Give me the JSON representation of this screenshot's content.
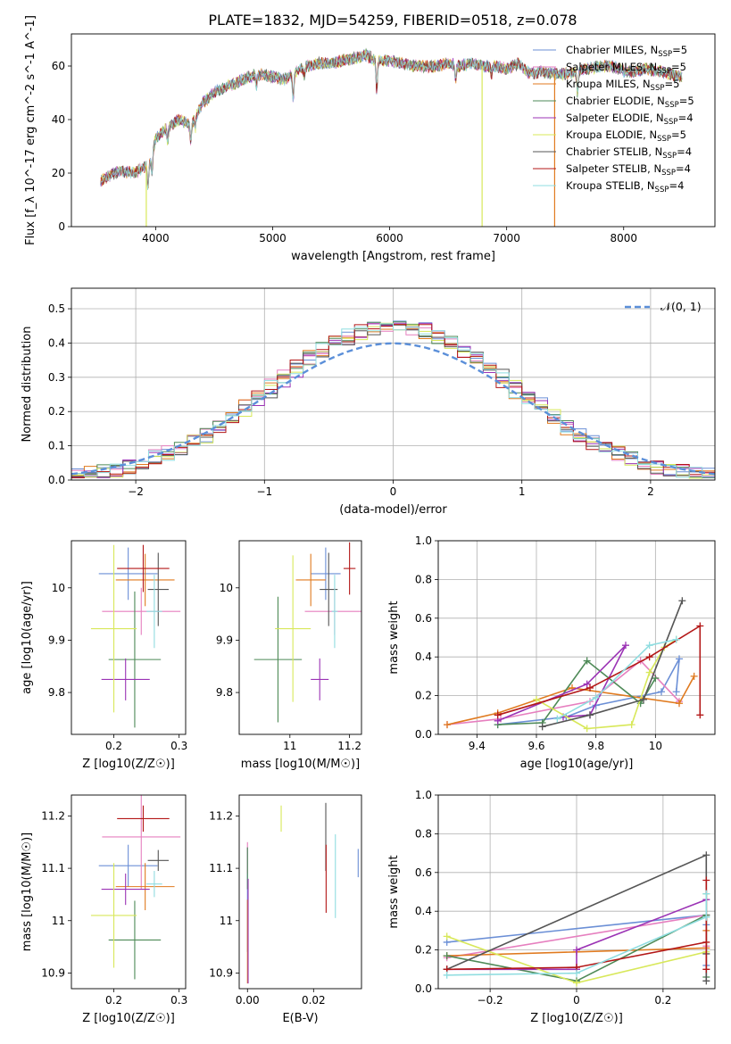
{
  "figure": {
    "title": "PLATE=1832, MJD=54259, FIBERID=0518, z=0.078"
  },
  "series_styles": [
    {
      "name": "Chabrier MILES, N_SSP=5",
      "color": "#6b8fd6"
    },
    {
      "name": "Salpeter MILES, N_SSP=5",
      "color": "#e67fbf"
    },
    {
      "name": "Kroupa MILES, N_SSP=5",
      "color": "#e07a1f"
    },
    {
      "name": "Chabrier ELODIE, N_SSP=5",
      "color": "#4e8a57"
    },
    {
      "name": "Salpeter ELODIE, N_SSP=4",
      "color": "#9b33b5"
    },
    {
      "name": "Kroupa ELODIE, N_SSP=5",
      "color": "#d8e85a"
    },
    {
      "name": "Chabrier STELIB, N_SSP=4",
      "color": "#555555"
    },
    {
      "name": "Salpeter STELIB, N_SSP=4",
      "color": "#b31717"
    },
    {
      "name": "Kroupa STELIB, N_SSP=4",
      "color": "#8fdde0"
    }
  ],
  "chart_data": [
    {
      "id": "spectrum",
      "type": "line",
      "title": "PLATE=1832, MJD=54259, FIBERID=0518, z=0.078",
      "xlabel": "wavelength [Angstrom, rest frame]",
      "ylabel": "Flux [f_λ 10^-17 erg cm^-2 s^-1 A^-1]",
      "xlim": [
        3280,
        8780
      ],
      "ylim": [
        0,
        72
      ],
      "xticks": [
        4000,
        5000,
        6000,
        7000,
        8000
      ],
      "yticks": [
        0,
        20,
        40,
        60
      ],
      "legend": "upper right",
      "legend_entries": [
        "Chabrier MILES, N_SSP=5",
        "Salpeter MILES, N_SSP=5",
        "Kroupa MILES, N_SSP=5",
        "Chabrier ELODIE, N_SSP=5",
        "Salpeter ELODIE, N_SSP=4",
        "Kroupa ELODIE, N_SSP=5",
        "Chabrier STELIB, N_SSP=4",
        "Salpeter STELIB, N_SSP=4",
        "Kroupa STELIB, N_SSP=4"
      ],
      "continuum": {
        "x": [
          3530,
          3600,
          3700,
          3800,
          3900,
          3950,
          4000,
          4100,
          4200,
          4300,
          4400,
          4500,
          4600,
          4700,
          4800,
          4900,
          5000,
          5100,
          5200,
          5300,
          5400,
          5500,
          5600,
          5700,
          5800,
          5900,
          6000,
          6100,
          6200,
          6300,
          6400,
          6500,
          6600,
          6700,
          6800,
          6900,
          7000,
          7100,
          7200,
          7300,
          7400,
          7500,
          7600,
          7700,
          7800,
          7900,
          8000,
          8100,
          8200,
          8300,
          8400,
          8500
        ],
        "y": [
          17,
          19,
          21,
          20,
          22,
          24,
          33,
          37,
          40,
          38,
          46,
          50,
          52,
          54,
          56,
          57,
          56,
          55,
          58,
          60,
          61,
          61,
          62,
          63,
          64,
          62,
          62,
          61,
          60,
          60,
          60,
          61,
          60,
          61,
          60,
          60,
          59,
          61,
          57,
          58,
          57,
          57,
          58,
          59,
          60,
          60,
          58,
          58,
          59,
          58,
          57,
          56
        ]
      },
      "dips": [
        {
          "series": 5,
          "x": 3920,
          "to": 0
        },
        {
          "series": 5,
          "x": 6790,
          "to": 0
        },
        {
          "series": 2,
          "x": 7410,
          "to": 0
        }
      ]
    },
    {
      "id": "residual_histogram",
      "type": "area",
      "xlabel": "(data-model)/error",
      "ylabel": "Normed distribution",
      "xlim": [
        -2.5,
        2.5
      ],
      "ylim": [
        0,
        0.56
      ],
      "xticks": [
        -2,
        -1,
        0,
        1,
        2
      ],
      "yticks": [
        0.0,
        0.1,
        0.2,
        0.3,
        0.4,
        0.5
      ],
      "grid": true,
      "legend": "upper right",
      "reference_curve": {
        "name": "𝒩(0, 1)",
        "mean": 0,
        "sigma": 1
      },
      "bin_width": 0.1,
      "envelope": "1.09*exp(-0.5*(x/0.93)^2)*(1+0.06*x)"
    },
    {
      "id": "age_vs_Z",
      "type": "scatter",
      "xlabel": "Z [log10(Z/Z☉)]",
      "ylabel": "age  [log10(age/yr)]",
      "xlim": [
        0.135,
        0.31
      ],
      "ylim": [
        9.72,
        10.09
      ],
      "xticks": [
        0.2,
        0.3
      ],
      "yticks": [
        9.8,
        9.9,
        10.0
      ],
      "points": [
        {
          "x": 0.222,
          "y": 10.027,
          "xerr": 0.045,
          "yerr": 0.05
        },
        {
          "x": 0.242,
          "y": 9.955,
          "xerr": 0.06,
          "yerr": 0.045
        },
        {
          "x": 0.248,
          "y": 10.015,
          "xerr": 0.045,
          "yerr": 0.05
        },
        {
          "x": 0.232,
          "y": 9.863,
          "xerr": 0.04,
          "yerr": 0.13
        },
        {
          "x": 0.218,
          "y": 9.825,
          "xerr": 0.037,
          "yerr": 0.04
        },
        {
          "x": 0.2,
          "y": 9.922,
          "xerr": 0.035,
          "yerr": 0.16
        },
        {
          "x": 0.268,
          "y": 9.997,
          "xerr": 0.016,
          "yerr": 0.07
        },
        {
          "x": 0.245,
          "y": 10.037,
          "xerr": 0.04,
          "yerr": 0.045
        },
        {
          "x": 0.262,
          "y": 9.955,
          "xerr": 0.012,
          "yerr": 0.07
        }
      ]
    },
    {
      "id": "age_vs_mass",
      "type": "scatter",
      "xlabel": "mass [log10(M/M☉)]",
      "ylabel": "",
      "xlim": [
        10.83,
        11.24
      ],
      "ylim": [
        9.72,
        10.09
      ],
      "xticks": [
        11.0,
        11.2
      ],
      "yticks": [
        9.8,
        9.9,
        10.0
      ],
      "points": [
        {
          "x": 11.12,
          "y": 10.027,
          "xerr": 0.05,
          "yerr": 0.05
        },
        {
          "x": 11.15,
          "y": 9.955,
          "xerr": 0.1,
          "yerr": 0.045
        },
        {
          "x": 11.07,
          "y": 10.015,
          "xerr": 0.05,
          "yerr": 0.05
        },
        {
          "x": 10.96,
          "y": 9.863,
          "xerr": 0.08,
          "yerr": 0.12
        },
        {
          "x": 11.1,
          "y": 9.825,
          "xerr": 0.03,
          "yerr": 0.04
        },
        {
          "x": 11.01,
          "y": 9.922,
          "xerr": 0.06,
          "yerr": 0.14
        },
        {
          "x": 11.13,
          "y": 9.997,
          "xerr": 0.03,
          "yerr": 0.07
        },
        {
          "x": 11.2,
          "y": 10.037,
          "xerr": 0.02,
          "yerr": 0.05
        },
        {
          "x": 11.15,
          "y": 9.955,
          "xerr": 0.01,
          "yerr": 0.07
        }
      ]
    },
    {
      "id": "mass_weight_vs_age",
      "type": "line",
      "xlabel": "age  [log10(age/yr)]",
      "ylabel": "mass weight",
      "xlim": [
        9.27,
        10.2
      ],
      "ylim": [
        0,
        1.0
      ],
      "xticks": [
        9.4,
        9.6,
        9.8,
        10.0
      ],
      "yticks": [
        0.0,
        0.2,
        0.4,
        0.6,
        0.8,
        1.0
      ],
      "grid": true,
      "series": [
        {
          "x": [
            9.47,
            9.7,
            9.8,
            10.02,
            10.08,
            10.07
          ],
          "y": [
            0.05,
            0.09,
            0.15,
            0.22,
            0.39,
            0.22
          ]
        },
        {
          "x": [
            9.3,
            9.48,
            9.78,
            9.95,
            10.08
          ],
          "y": [
            0.05,
            0.08,
            0.17,
            0.38,
            0.17
          ]
        },
        {
          "x": [
            9.3,
            9.47,
            9.72,
            10.08,
            10.13
          ],
          "y": [
            0.05,
            0.11,
            0.24,
            0.16,
            0.3
          ]
        },
        {
          "x": [
            9.47,
            9.62,
            9.77,
            9.95,
            10.0
          ],
          "y": [
            0.05,
            0.06,
            0.38,
            0.16,
            0.29
          ]
        },
        {
          "x": [
            9.47,
            9.77,
            9.9,
            9.78,
            9.69
          ],
          "y": [
            0.07,
            0.26,
            0.46,
            0.1,
            0.09
          ]
        },
        {
          "x": [
            9.6,
            9.77,
            9.92,
            9.98,
            10.03,
            10.07
          ],
          "y": [
            0.18,
            0.03,
            0.05,
            0.32,
            0.45,
            0.49
          ]
        },
        {
          "x": [
            9.62,
            9.78,
            9.96,
            10.09
          ],
          "y": [
            0.04,
            0.1,
            0.18,
            0.69
          ]
        },
        {
          "x": [
            9.47,
            9.78,
            9.98,
            10.15,
            10.15
          ],
          "y": [
            0.1,
            0.24,
            0.4,
            0.56,
            0.1
          ]
        },
        {
          "x": [
            9.67,
            9.8,
            9.98,
            10.07
          ],
          "y": [
            0.08,
            0.19,
            0.46,
            0.49
          ]
        }
      ]
    },
    {
      "id": "mass_vs_Z",
      "type": "scatter",
      "xlabel": "Z [log10(Z/Z☉)]",
      "ylabel": "mass [log10(M/M☉)]",
      "xlim": [
        0.135,
        0.31
      ],
      "ylim": [
        10.87,
        11.24
      ],
      "xticks": [
        0.2,
        0.3
      ],
      "yticks": [
        10.9,
        11.0,
        11.1,
        11.2
      ],
      "points": [
        {
          "x": 0.222,
          "y": 11.105,
          "xerr": 0.045,
          "yerr": 0.04
        },
        {
          "x": 0.242,
          "y": 11.16,
          "xerr": 0.06,
          "yerr": 0.1
        },
        {
          "x": 0.248,
          "y": 11.065,
          "xerr": 0.045,
          "yerr": 0.045
        },
        {
          "x": 0.232,
          "y": 10.963,
          "xerr": 0.04,
          "yerr": 0.075
        },
        {
          "x": 0.218,
          "y": 11.06,
          "xerr": 0.037,
          "yerr": 0.03
        },
        {
          "x": 0.2,
          "y": 11.01,
          "xerr": 0.035,
          "yerr": 0.1
        },
        {
          "x": 0.268,
          "y": 11.115,
          "xerr": 0.016,
          "yerr": 0.02
        },
        {
          "x": 0.245,
          "y": 11.195,
          "xerr": 0.04,
          "yerr": 0.025
        },
        {
          "x": 0.262,
          "y": 11.07,
          "xerr": 0.012,
          "yerr": 0.025
        }
      ]
    },
    {
      "id": "mass_vs_ebv",
      "type": "scatter",
      "xlabel": "E(B-V)",
      "ylabel": "",
      "xlim": [
        -0.0025,
        0.0345
      ],
      "ylim": [
        10.87,
        11.24
      ],
      "xticks": [
        0.0,
        0.02
      ],
      "tick_labels": [
        "0.00",
        "0.02"
      ],
      "yticks": [
        10.9,
        11.0,
        11.1,
        11.2
      ],
      "points": [
        {
          "x": 0.0,
          "y": 11.04,
          "yerr": 0.1
        },
        {
          "x": 0.0,
          "y": 11.12,
          "yerr": 0.03
        },
        {
          "x": 0.0,
          "y": 10.96,
          "yerr": 0.08
        },
        {
          "x": 0.0,
          "y": 11.1,
          "yerr": 0.04
        },
        {
          "x": 0.0002,
          "y": 10.98,
          "yerr": 0.1
        },
        {
          "x": 0.0102,
          "y": 11.195,
          "yerr": 0.025
        },
        {
          "x": 0.0237,
          "y": 11.16,
          "yerr": 0.065
        },
        {
          "x": 0.0238,
          "y": 11.08,
          "yerr": 0.065
        },
        {
          "x": 0.0266,
          "y": 11.085,
          "yerr": 0.08
        },
        {
          "x": 0.0335,
          "y": 11.11,
          "yerr": 0.027
        }
      ]
    },
    {
      "id": "mass_weight_vs_Z",
      "type": "line",
      "xlabel": "Z [log10(Z/Z☉)]",
      "ylabel": "mass weight",
      "xlim": [
        -0.32,
        0.32
      ],
      "ylim": [
        0,
        1.0
      ],
      "xticks": [
        -0.2,
        0.0,
        0.2
      ],
      "yticks": [
        0.0,
        0.2,
        0.4,
        0.6,
        0.8,
        1.0
      ],
      "grid": true,
      "series": [
        {
          "x": [
            -0.3,
            0.3,
            0.3,
            0.3
          ],
          "y": [
            0.24,
            0.38,
            0.33,
            0.12
          ]
        },
        {
          "x": [
            -0.3,
            0.3,
            0.3
          ],
          "y": [
            0.16,
            0.38,
            0.22
          ]
        },
        {
          "x": [
            -0.3,
            0.0,
            0.3,
            0.3
          ],
          "y": [
            0.17,
            0.19,
            0.21,
            0.3
          ]
        },
        {
          "x": [
            -0.3,
            0.0,
            0.3,
            0.3
          ],
          "y": [
            0.17,
            0.04,
            0.38,
            0.06
          ]
        },
        {
          "x": [
            -0.3,
            0.0,
            0.0,
            0.3
          ],
          "y": [
            0.1,
            0.1,
            0.2,
            0.46
          ]
        },
        {
          "x": [
            -0.3,
            0.0,
            0.3,
            0.3
          ],
          "y": [
            0.27,
            0.03,
            0.19,
            0.49
          ]
        },
        {
          "x": [
            -0.3,
            0.3,
            0.3,
            0.3
          ],
          "y": [
            0.1,
            0.69,
            0.18,
            0.04
          ]
        },
        {
          "x": [
            -0.3,
            0.0,
            0.3,
            0.3,
            0.3
          ],
          "y": [
            0.1,
            0.11,
            0.24,
            0.56,
            0.1
          ]
        },
        {
          "x": [
            -0.3,
            0.0,
            0.3,
            0.3
          ],
          "y": [
            0.07,
            0.08,
            0.37,
            0.49
          ]
        }
      ]
    }
  ]
}
